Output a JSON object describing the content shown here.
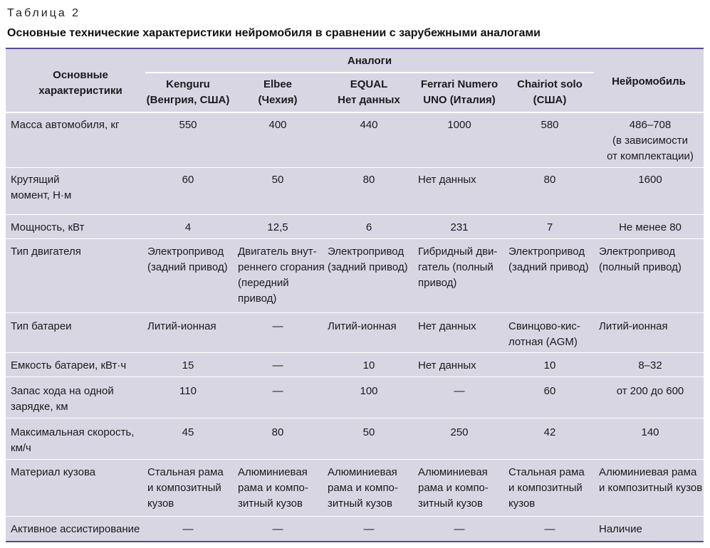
{
  "caption": "Таблица 2",
  "title": "Основные технические характеристики нейромобиля в сравнении с зарубежными аналогами",
  "header": {
    "main": "Основные\nхарактеристики",
    "group": "Аналоги",
    "cols": [
      "Kenguru\n(Венгрия, США)",
      "Elbee\n(Чехия)",
      "EQUAL\nНет данных",
      "Ferrari Numero\nUNO (Италия)",
      "Chairiot solo\n(США)",
      "Нейромобиль"
    ]
  },
  "rows": [
    {
      "label": "Масса автомобиля, кг",
      "values": [
        "550",
        "400",
        "440",
        "1000",
        "580",
        "486–708\n(в зависимости\nот комплектации)"
      ]
    },
    {
      "label": "Крутящий\nмомент, Н·м",
      "values": [
        "60",
        "50",
        "80",
        "Нет данных",
        "80",
        "1600"
      ]
    },
    {
      "label": "Мощность, кВт",
      "values": [
        "4",
        "12,5",
        "6",
        "231",
        "7",
        "Не менее 80"
      ]
    },
    {
      "label": "Тип двигателя",
      "values": [
        "Электропривод\n(задний привод)",
        "Двигатель внут-\nреннего сгорания\n(передний\nпривод)",
        "Электропривод\n(задний привод)",
        "Гибридный дви-\nгатель (полный\nпривод)",
        "Электропривод\n(задний привод)",
        "Электропривод\n(полный привод)"
      ]
    },
    {
      "label": "Тип батареи",
      "values": [
        "Литий-ионная",
        "—",
        "Литий-ионная",
        "Нет данных",
        "Свинцово-кис-\nлотная (AGM)",
        "Литий-ионная"
      ]
    },
    {
      "label": "Емкость батареи, кВт·ч",
      "values": [
        "15",
        "—",
        "10",
        "Нет данных",
        "10",
        "8–32"
      ]
    },
    {
      "label": "Запас хода на одной\nзарядке, км",
      "values": [
        "110",
        "—",
        "100",
        "—",
        "60",
        "от 200 до 600"
      ]
    },
    {
      "label": "Максимальная скорость,\nкм/ч",
      "values": [
        "45",
        "80",
        "50",
        "250",
        "42",
        "140"
      ]
    },
    {
      "label": "Материал кузова",
      "values": [
        "Стальная рама\nи композитный\nкузов",
        "Алюминиевая\nрама и компо-\nзитный кузов",
        "Алюминиевая\nрама и компо-\nзитный кузов",
        "Алюминиевая\nрама и компо-\nзитный кузов",
        "Стальная рама\nи композитный\nкузов",
        "Алюминиевая рама\nи композитный кузов"
      ]
    },
    {
      "label": "Активное ассистирование",
      "values": [
        "—",
        "—",
        "—",
        "—",
        "—",
        "Наличие"
      ]
    }
  ]
}
